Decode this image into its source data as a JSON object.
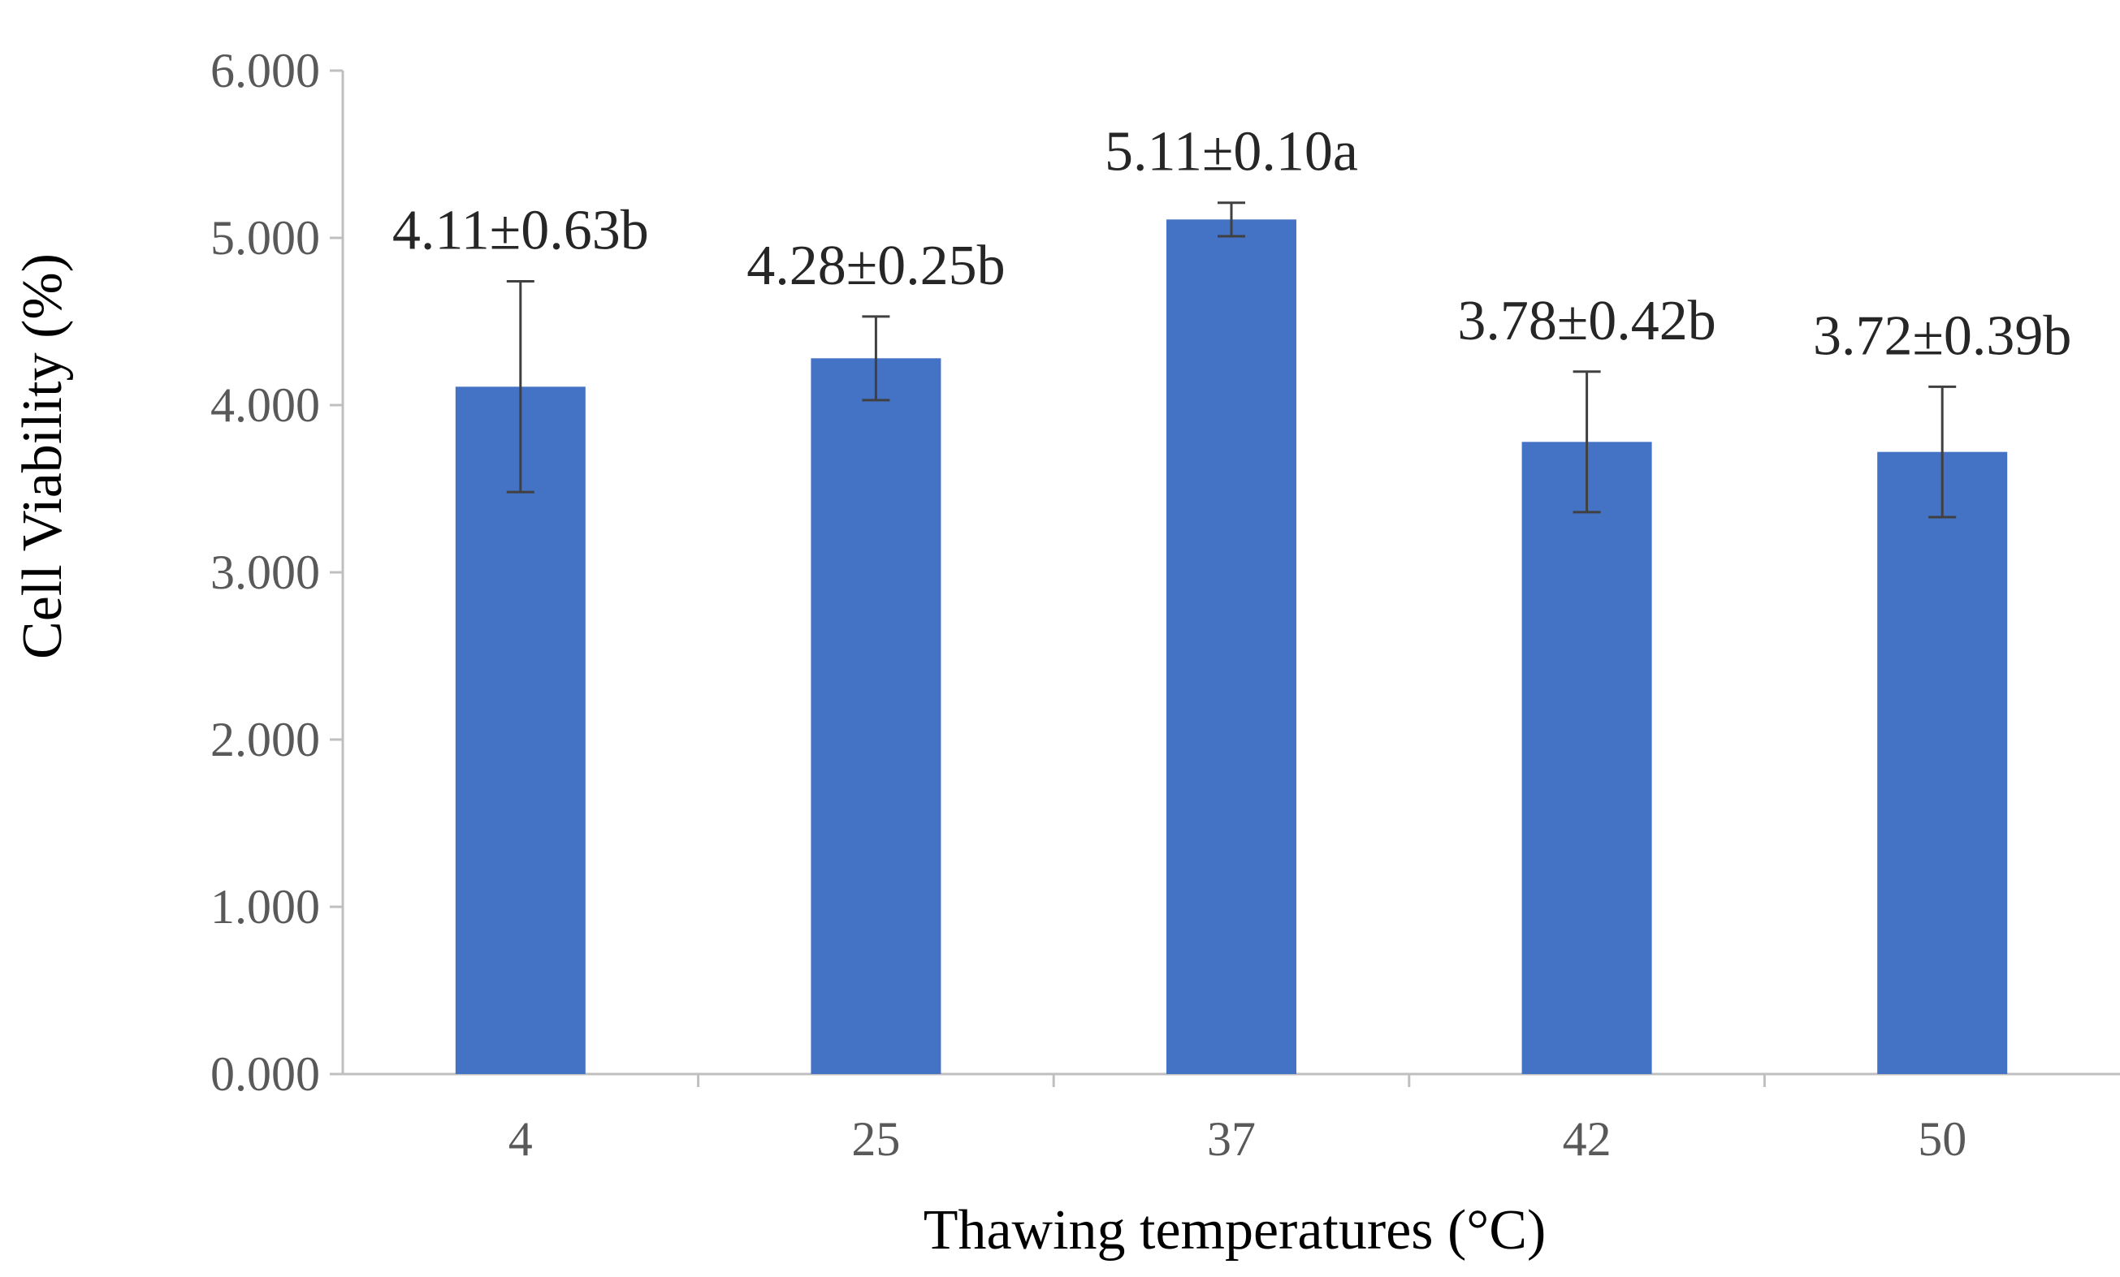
{
  "chart_data": {
    "type": "bar",
    "title": "",
    "xlabel": "Thawing temperatures (°C)",
    "ylabel": "Cell Viability (%)",
    "categories": [
      "4",
      "25",
      "37",
      "42",
      "50"
    ],
    "values": [
      4.11,
      4.28,
      5.11,
      3.78,
      3.72
    ],
    "errors": [
      0.63,
      0.25,
      0.1,
      0.42,
      0.39
    ],
    "data_labels": [
      "4.11±0.63b",
      "4.28±0.25b",
      "5.11±0.10a",
      "3.78±0.42b",
      "3.72±0.39b"
    ],
    "ylim": [
      0,
      6
    ],
    "yticks": [
      0,
      1,
      2,
      3,
      4,
      5,
      6
    ],
    "ytick_labels": [
      "0.000",
      "1.000",
      "2.000",
      "3.000",
      "4.000",
      "5.000",
      "6.000"
    ],
    "grid": false,
    "legend": "none",
    "colors": {
      "bar": "#4472C4",
      "axis": "#BFBFBF",
      "error_bar": "#404040"
    }
  }
}
